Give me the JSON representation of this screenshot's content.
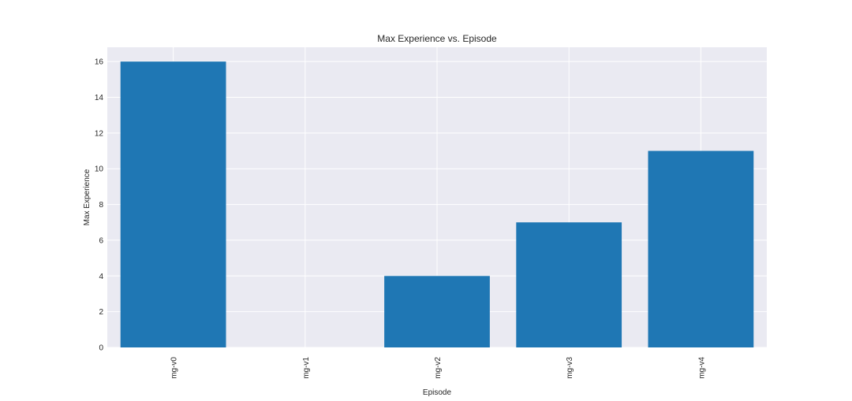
{
  "chart_data": {
    "type": "bar",
    "title": "Max Experience vs. Episode",
    "xlabel": "Episode",
    "ylabel": "Max Experience",
    "categories": [
      "mg-v0",
      "mg-v1",
      "mg-v2",
      "mg-v3",
      "mg-v4"
    ],
    "values": [
      16,
      0,
      4,
      7,
      11
    ],
    "ylim": [
      0,
      16.8
    ],
    "yticks": [
      0,
      2,
      4,
      6,
      8,
      10,
      12,
      14,
      16
    ],
    "grid": true,
    "legend": "none",
    "colors": {
      "bar": "#1f77b4",
      "plot_background": "#eaeaf2",
      "grid": "#ffffff",
      "text": "#262626"
    }
  }
}
